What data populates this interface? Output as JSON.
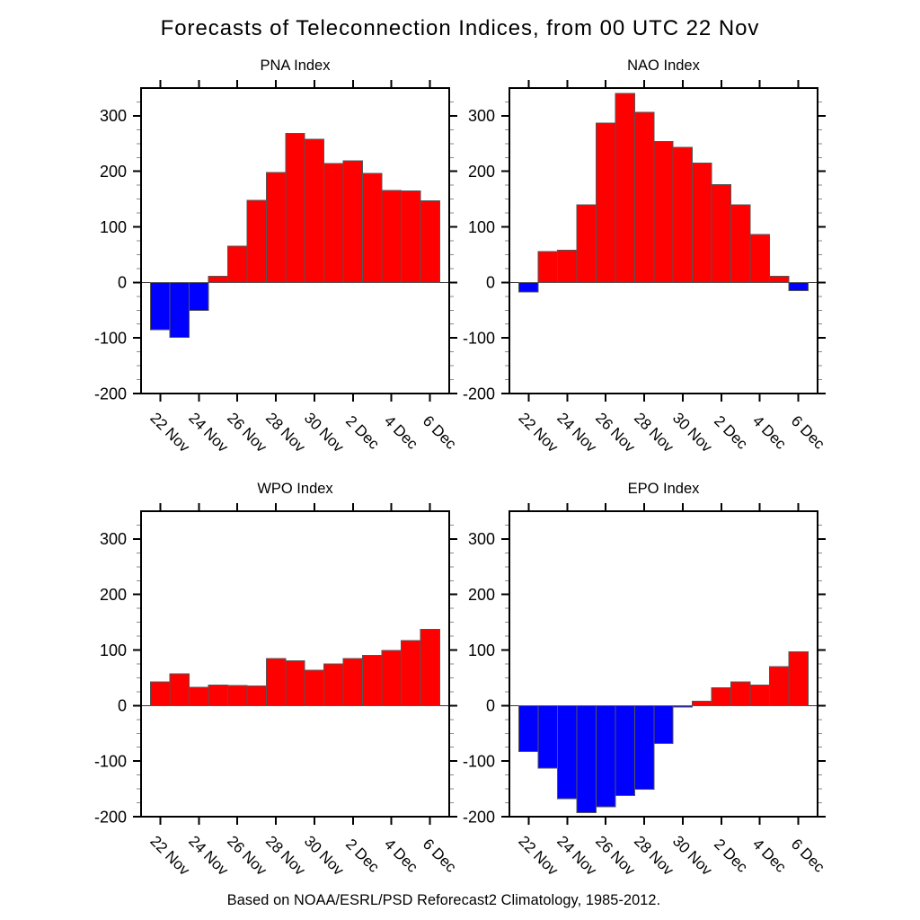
{
  "page": {
    "title": "Forecasts of Teleconnection Indices, from 00 UTC 22 Nov",
    "footer": "Based on NOAA/ESRL/PSD Reforecast2 Climatology, 1985-2012.",
    "background": "#ffffff"
  },
  "colors": {
    "positive_bar": "#ff0000",
    "negative_bar": "#0000ff",
    "axis": "#000000",
    "minor_tick": "#8a8a8a",
    "bar_outline": "#555555"
  },
  "chart_data": [
    {
      "type": "bar",
      "title": "PNA Index",
      "categories": [
        "22 Nov",
        "23 Nov",
        "24 Nov",
        "25 Nov",
        "26 Nov",
        "27 Nov",
        "28 Nov",
        "29 Nov",
        "30 Nov",
        "1 Dec",
        "2 Dec",
        "3 Dec",
        "4 Dec",
        "5 Dec",
        "6 Dec"
      ],
      "values": [
        -85,
        -99,
        -50,
        11,
        65,
        148,
        198,
        268,
        258,
        214,
        219,
        196,
        166,
        165,
        147
      ],
      "xtick_labels": [
        "22 Nov",
        "24 Nov",
        "26 Nov",
        "28 Nov",
        "30 Nov",
        "2 Dec",
        "4 Dec",
        "6 Dec"
      ],
      "ylim": [
        -200,
        350
      ],
      "yticks": [
        -200,
        -100,
        0,
        100,
        200,
        300
      ],
      "y_minor_step": 25,
      "grid": false,
      "legend": false
    },
    {
      "type": "bar",
      "title": "NAO Index",
      "categories": [
        "22 Nov",
        "23 Nov",
        "24 Nov",
        "25 Nov",
        "26 Nov",
        "27 Nov",
        "28 Nov",
        "29 Nov",
        "30 Nov",
        "1 Dec",
        "2 Dec",
        "3 Dec",
        "4 Dec",
        "5 Dec",
        "6 Dec"
      ],
      "values": [
        -17,
        56,
        58,
        140,
        287,
        340,
        306,
        254,
        243,
        215,
        176,
        140,
        86,
        11,
        -15
      ],
      "xtick_labels": [
        "22 Nov",
        "24 Nov",
        "26 Nov",
        "28 Nov",
        "30 Nov",
        "2 Dec",
        "4 Dec",
        "6 Dec"
      ],
      "ylim": [
        -200,
        350
      ],
      "yticks": [
        -200,
        -100,
        0,
        100,
        200,
        300
      ],
      "y_minor_step": 25,
      "grid": false,
      "legend": false
    },
    {
      "type": "bar",
      "title": "WPO Index",
      "categories": [
        "22 Nov",
        "23 Nov",
        "24 Nov",
        "25 Nov",
        "26 Nov",
        "27 Nov",
        "28 Nov",
        "29 Nov",
        "30 Nov",
        "1 Dec",
        "2 Dec",
        "3 Dec",
        "4 Dec",
        "5 Dec",
        "6 Dec"
      ],
      "values": [
        43,
        57,
        33,
        37,
        36,
        35,
        85,
        81,
        64,
        75,
        85,
        90,
        99,
        117,
        137
      ],
      "xtick_labels": [
        "22 Nov",
        "24 Nov",
        "26 Nov",
        "28 Nov",
        "30 Nov",
        "2 Dec",
        "4 Dec",
        "6 Dec"
      ],
      "ylim": [
        -200,
        350
      ],
      "yticks": [
        -200,
        -100,
        0,
        100,
        200,
        300
      ],
      "y_minor_step": 25,
      "grid": false,
      "legend": false
    },
    {
      "type": "bar",
      "title": "EPO Index",
      "categories": [
        "22 Nov",
        "23 Nov",
        "24 Nov",
        "25 Nov",
        "26 Nov",
        "27 Nov",
        "28 Nov",
        "29 Nov",
        "30 Nov",
        "1 Dec",
        "2 Dec",
        "3 Dec",
        "4 Dec",
        "5 Dec",
        "6 Dec"
      ],
      "values": [
        -83,
        -113,
        -168,
        -193,
        -182,
        -162,
        -151,
        -68,
        -3,
        8,
        32,
        43,
        37,
        70,
        97
      ],
      "xtick_labels": [
        "22 Nov",
        "24 Nov",
        "26 Nov",
        "28 Nov",
        "30 Nov",
        "2 Dec",
        "4 Dec",
        "6 Dec"
      ],
      "ylim": [
        -200,
        350
      ],
      "yticks": [
        -200,
        -100,
        0,
        100,
        200,
        300
      ],
      "y_minor_step": 25,
      "grid": false,
      "legend": false
    }
  ]
}
